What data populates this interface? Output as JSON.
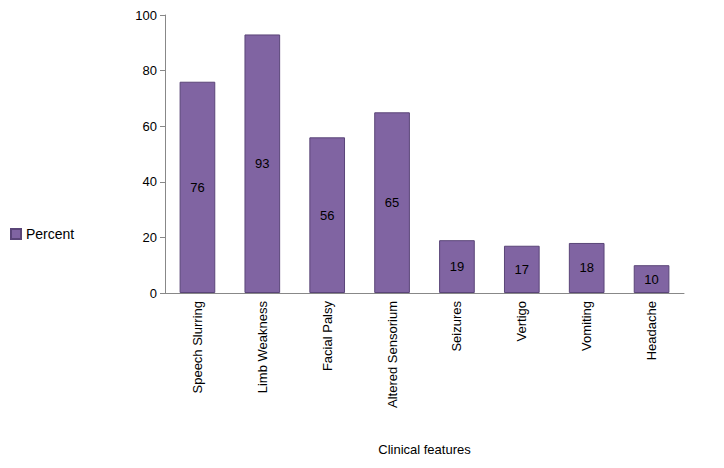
{
  "chart_data": {
    "type": "bar",
    "x_label": "Clinical features",
    "categories": [
      "Speech Slurring",
      "Limb Weakness",
      "Facial Palsy",
      "Altered Sensorium",
      "Seizures",
      "Vertigo",
      "Vomiting",
      "Headache"
    ],
    "series": [
      {
        "name": "Percent",
        "color": "#8064a2",
        "values": [
          76,
          93,
          56,
          65,
          19,
          17,
          18,
          10
        ]
      }
    ],
    "ylim": [
      0,
      100
    ],
    "yticks": [
      0,
      20,
      40,
      60,
      80,
      100
    ],
    "grid": false,
    "legend": "left",
    "data_labels": true
  }
}
